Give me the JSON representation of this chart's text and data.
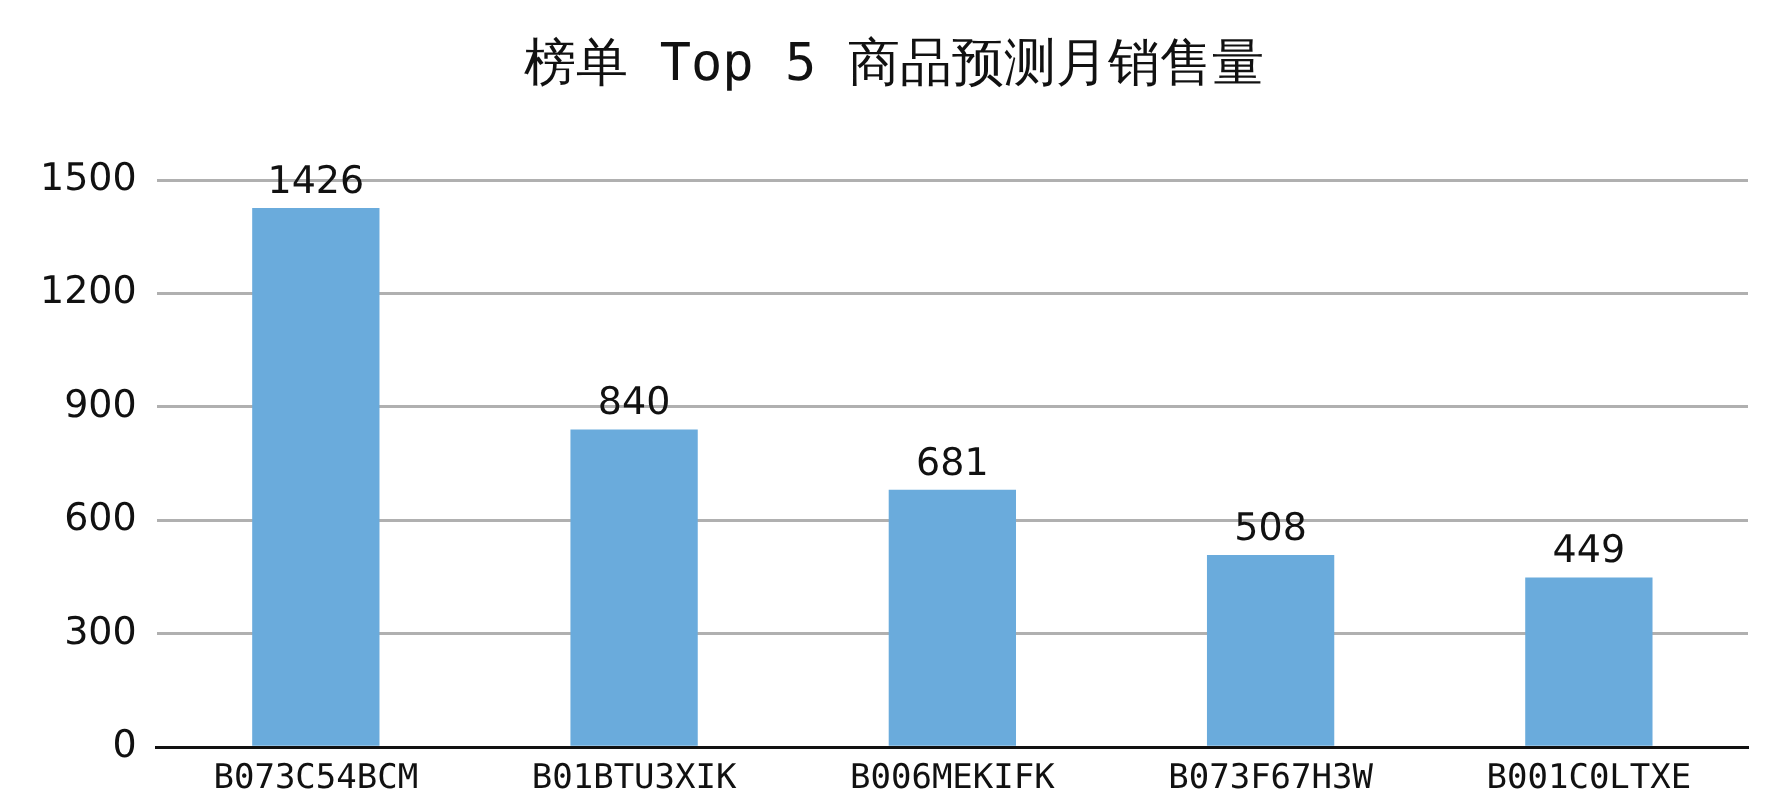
{
  "chart_data": {
    "type": "bar",
    "title": "榜单 Top 5 商品预测月销售量",
    "categories": [
      "B073C54BCM",
      "B01BTU3XIK",
      "B006MEKIFK",
      "B073F67H3W",
      "B001C0LTXE"
    ],
    "values": [
      1426,
      840,
      681,
      508,
      449
    ],
    "color": "#6aabdc",
    "ylim": [
      0,
      1500
    ],
    "yticks": [
      0,
      300,
      600,
      900,
      1200,
      1500
    ],
    "grid": "y",
    "data_labels": true
  }
}
